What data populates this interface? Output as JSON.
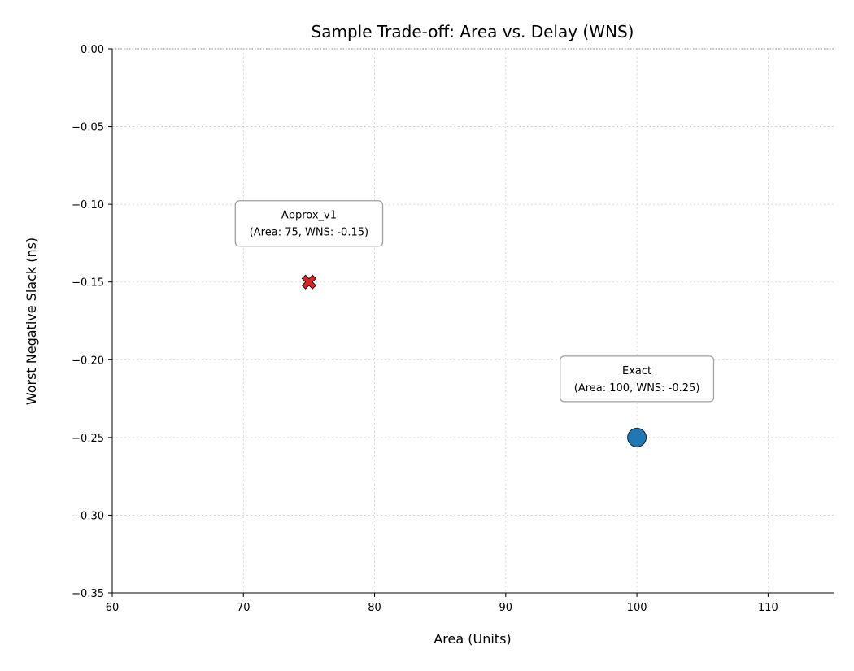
{
  "chart_data": {
    "type": "scatter",
    "title": "Sample Trade-off: Area vs. Delay (WNS)",
    "xlabel": "Area (Units)",
    "ylabel": "Worst Negative Slack (ns)",
    "xlim": [
      60,
      115
    ],
    "ylim": [
      -0.35,
      0.0
    ],
    "xticks": [
      60,
      70,
      80,
      90,
      100,
      110
    ],
    "xtick_labels": [
      "60",
      "70",
      "80",
      "90",
      "100",
      "110"
    ],
    "yticks": [
      0.0,
      -0.05,
      -0.1,
      -0.15,
      -0.2,
      -0.25,
      -0.3,
      -0.35
    ],
    "ytick_labels": [
      "0.00",
      "−0.05",
      "−0.10",
      "−0.15",
      "−0.20",
      "−0.25",
      "−0.30",
      "−0.35"
    ],
    "grid": true,
    "reference_line_y": 0.0,
    "points": [
      {
        "x": 75,
        "y": -0.15,
        "marker": "x",
        "color": "#d62728",
        "annotation": [
          "Approx_v1",
          "(Area: 75, WNS: -0.15)"
        ]
      },
      {
        "x": 100,
        "y": -0.25,
        "marker": "circle",
        "color": "#1f77b4",
        "annotation": [
          "Exact",
          "(Area: 100, WNS: -0.25)"
        ]
      }
    ]
  }
}
